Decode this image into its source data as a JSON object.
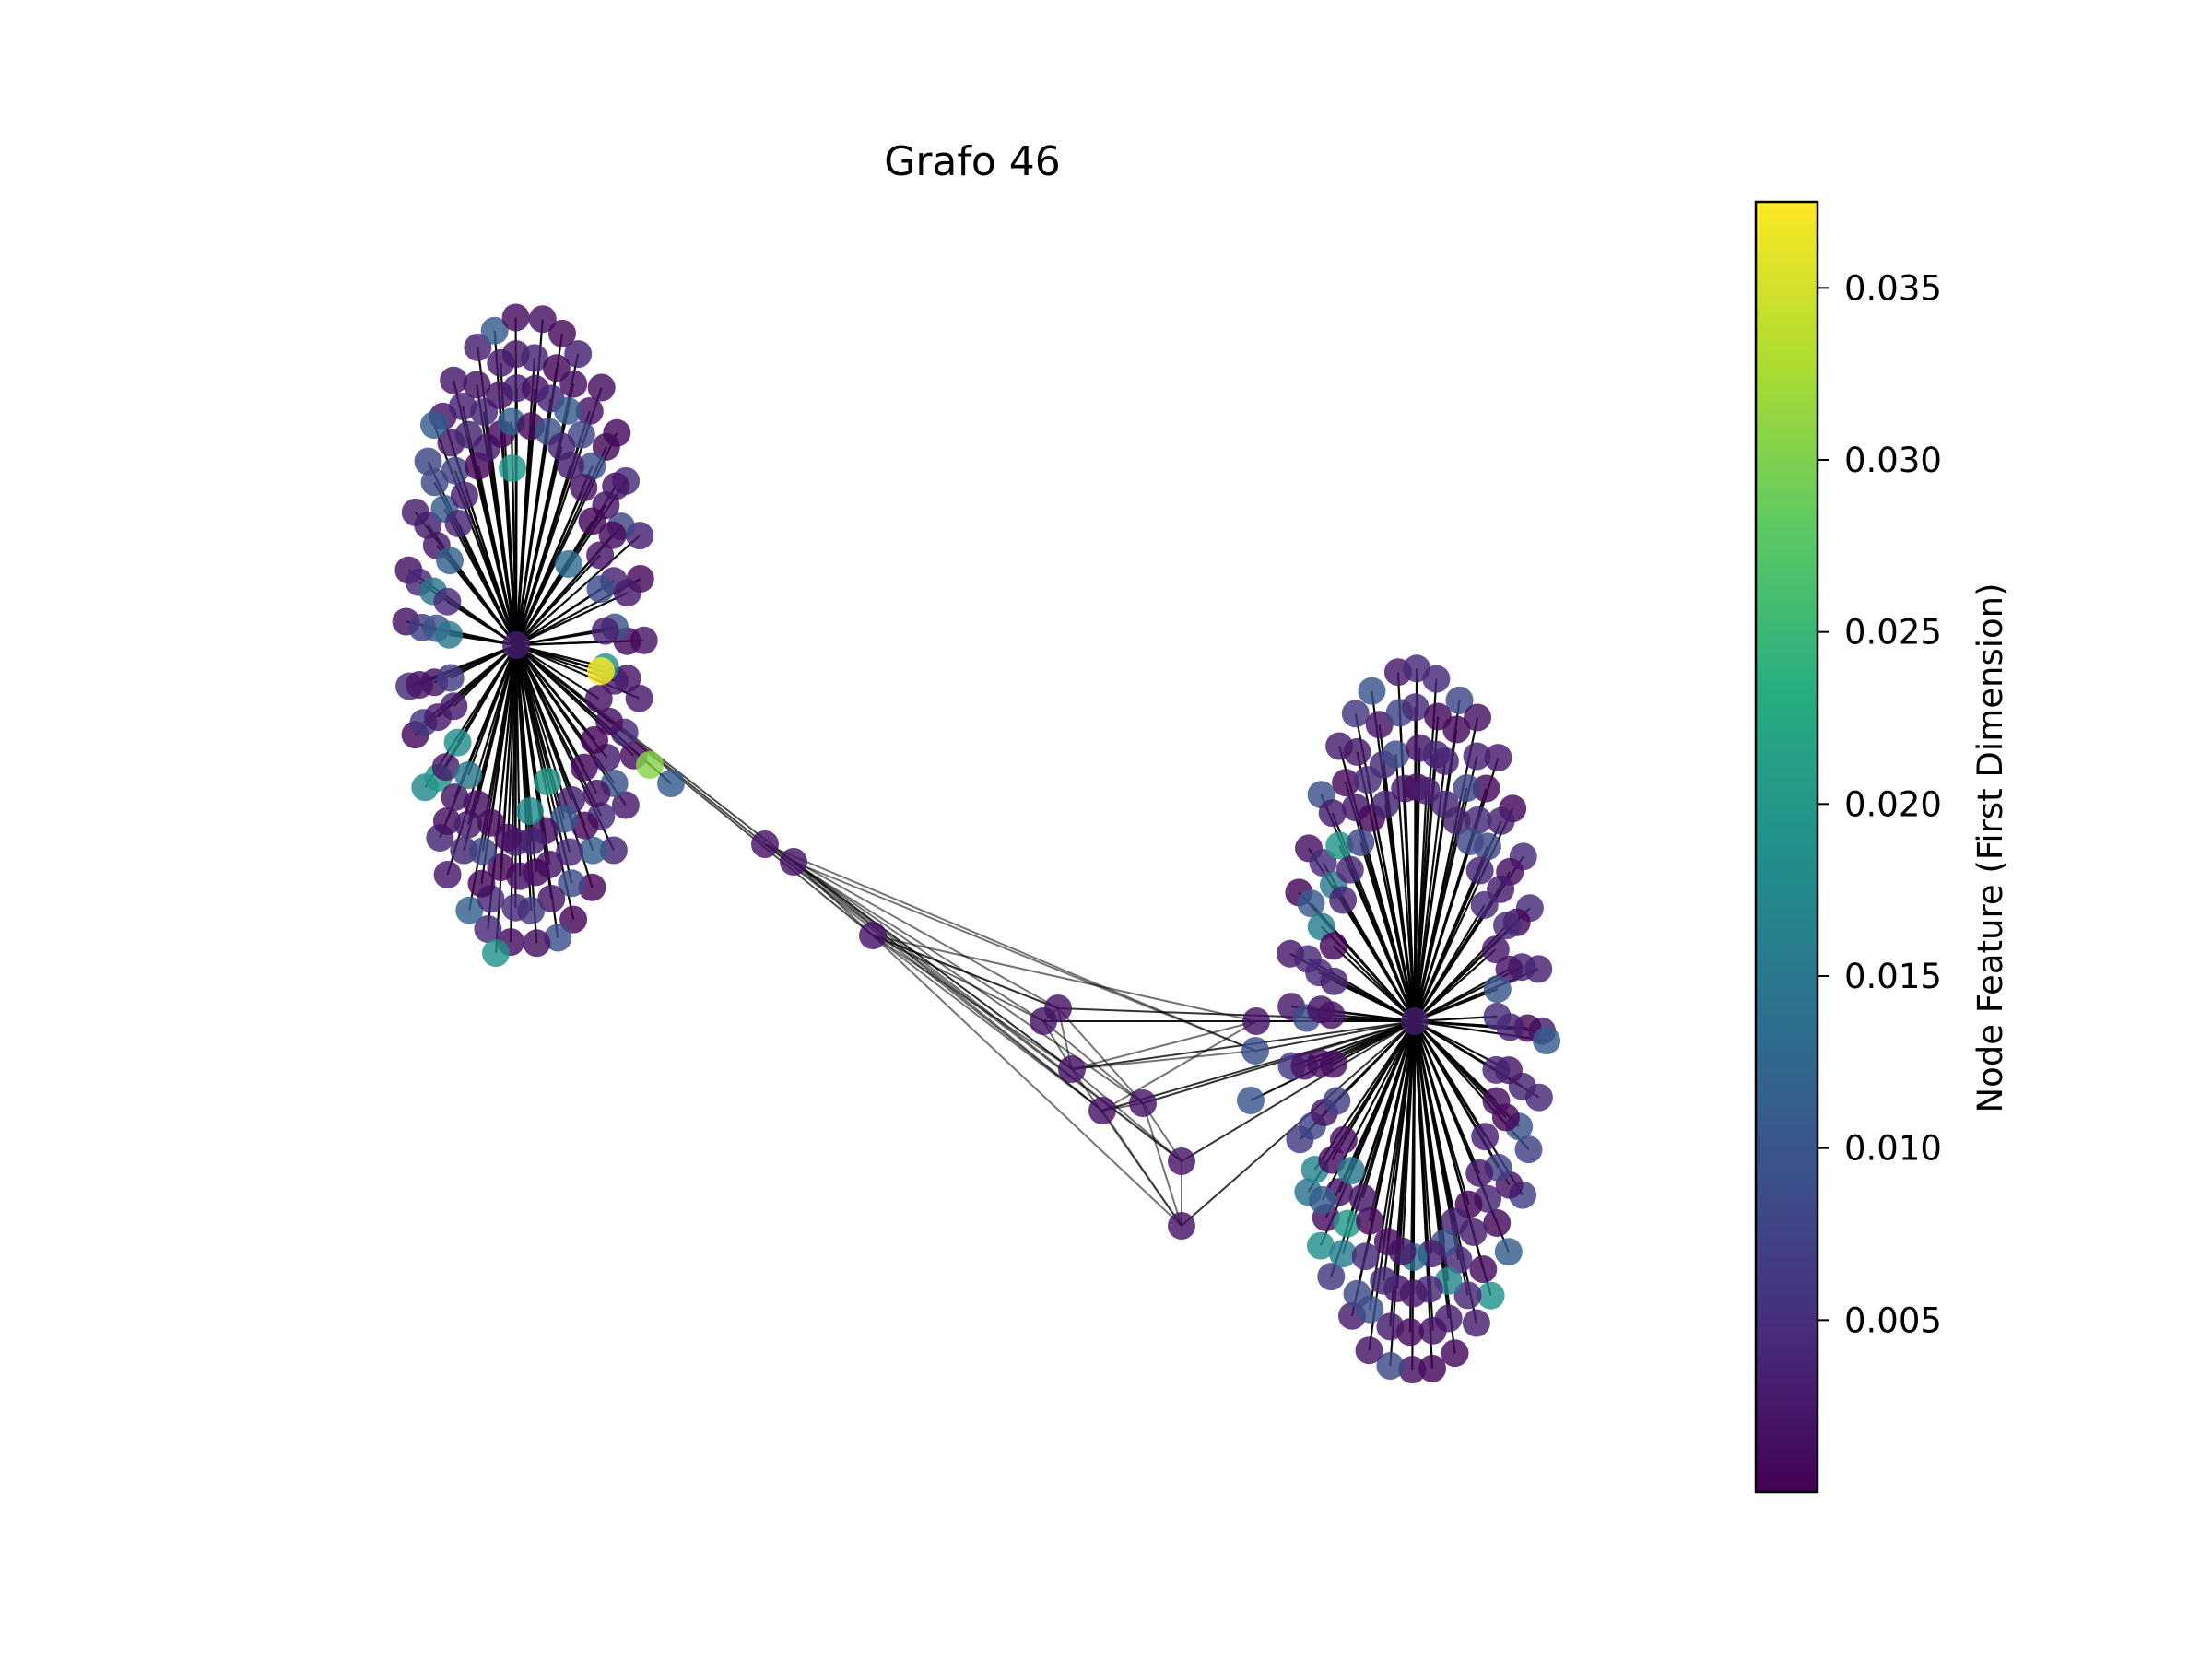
{
  "title": "Grafo 46",
  "colorbar": {
    "label": "Node Feature (First Dimension)",
    "colormap": "viridis",
    "range": [
      0.0,
      0.0375
    ],
    "ticks": [
      {
        "value": 0.005,
        "label": "0.005"
      },
      {
        "value": 0.01,
        "label": "0.010"
      },
      {
        "value": 0.015,
        "label": "0.015"
      },
      {
        "value": 0.02,
        "label": "0.020"
      },
      {
        "value": 0.025,
        "label": "0.025"
      },
      {
        "value": 0.03,
        "label": "0.030"
      },
      {
        "value": 0.035,
        "label": "0.035"
      }
    ]
  },
  "graph": {
    "clusters": 2,
    "bridge_nodes": 12,
    "node_color_scale": "viridis",
    "edge_color": "#000000"
  }
}
